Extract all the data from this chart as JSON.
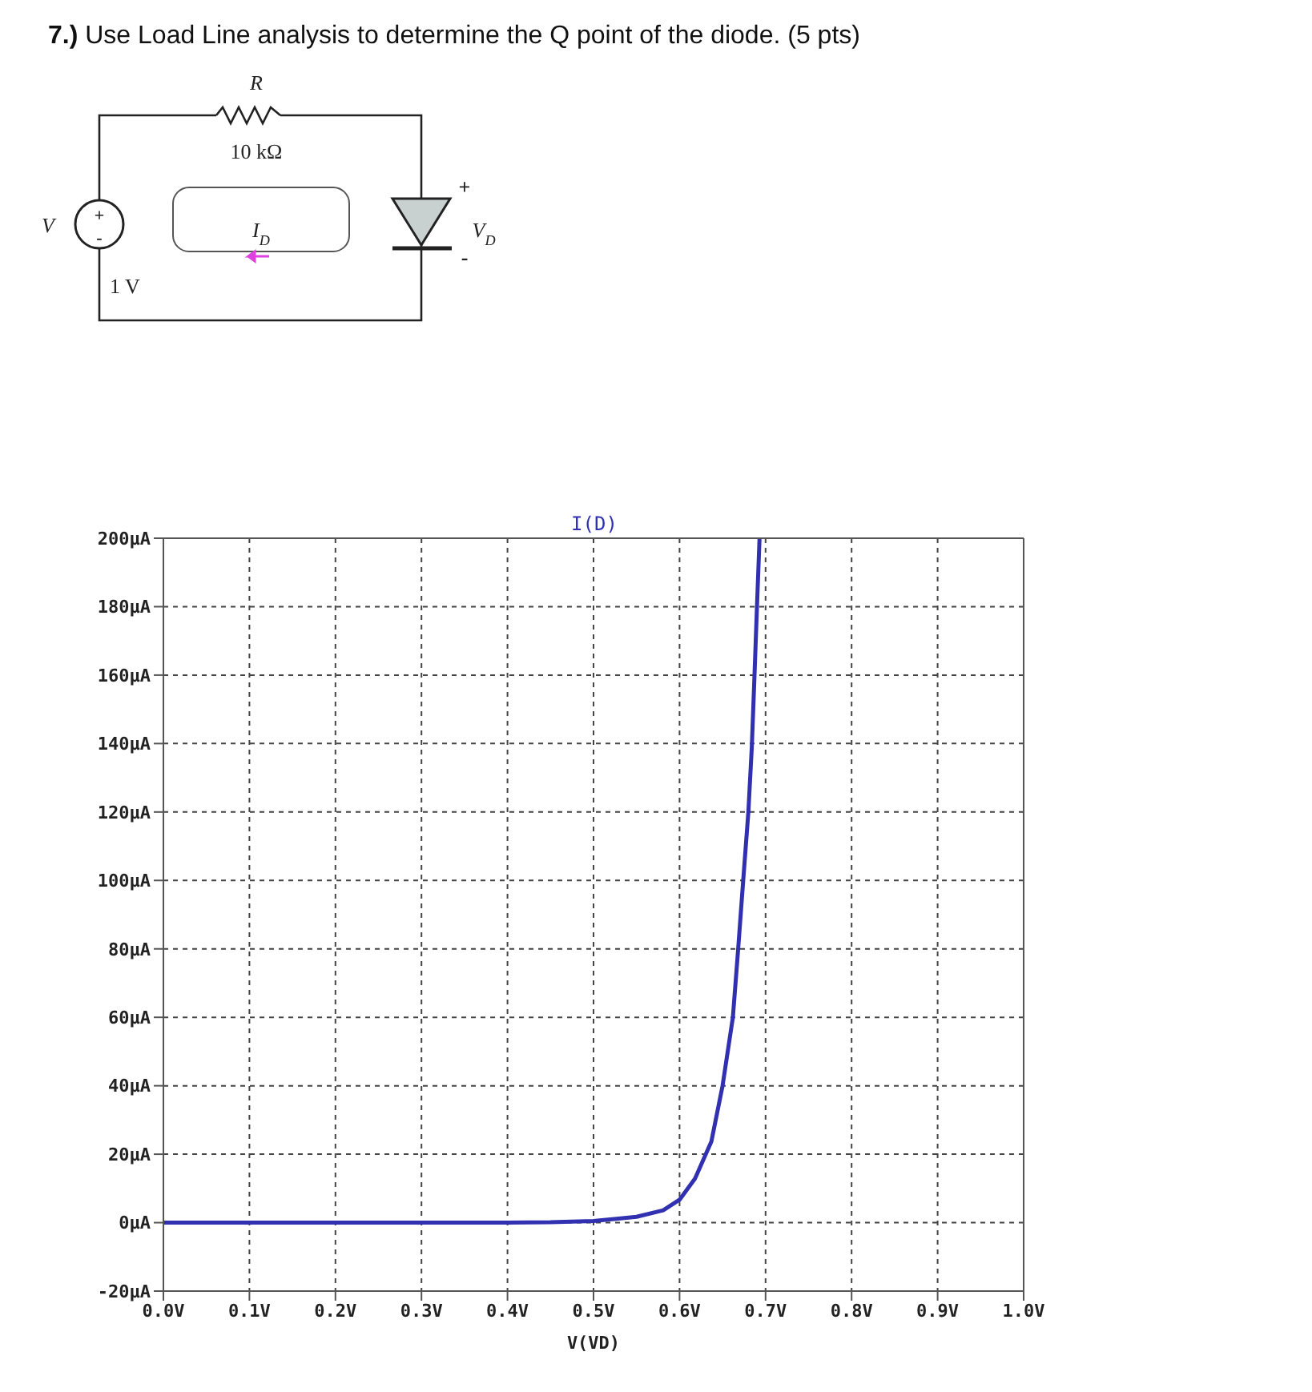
{
  "chart_data": {
    "type": "line",
    "title": "7.) Use Load Line analysis to determine the Q point of the diode. (5 pts)",
    "subtitle": "I(D)",
    "xlabel": "V(VD)",
    "annotations": [
      "R",
      "10 kΩ",
      "V",
      "1 V",
      "+",
      "-",
      "I$_{D}$",
      "+",
      "V$_{D}$",
      "-"
    ],
    "series": [
      {
        "color": "#3030b0",
        "x": [
          0,
          0.1,
          0.2,
          0.3,
          0.4,
          0.45,
          0.5,
          0.55,
          0.581,
          0.6,
          0.618,
          0.637,
          0.65,
          0.662,
          0.668,
          0.674,
          0.68,
          0.684,
          0.687,
          0.69,
          0.693
        ],
        "values": [
          0,
          0,
          0,
          0,
          0,
          0.1,
          0.5,
          1.7,
          3.6,
          6.7,
          12.9,
          23.7,
          40,
          60,
          79.5,
          100,
          120,
          139,
          159,
          180,
          200
        ]
      }
    ],
    "xlim": [
      0,
      1
    ],
    "xticks": [
      {
        "value": 0,
        "label": "0.0V"
      },
      {
        "value": 0.1,
        "label": "0.1V"
      },
      {
        "value": 0.2,
        "label": "0.2V"
      },
      {
        "value": 0.3,
        "label": "0.3V"
      },
      {
        "value": 0.4,
        "label": "0.4V"
      },
      {
        "value": 0.5,
        "label": "0.5V"
      },
      {
        "value": 0.6,
        "label": "0.6V"
      },
      {
        "value": 0.7,
        "label": "0.7V"
      },
      {
        "value": 0.8,
        "label": "0.8V"
      },
      {
        "value": 0.9,
        "label": "0.9V"
      },
      {
        "value": 1,
        "label": "1.0V"
      }
    ],
    "ylim": [
      -20,
      200
    ],
    "yticks": [
      {
        "value": -20,
        "label": "-20µA"
      },
      {
        "value": 0,
        "label": "0µA"
      },
      {
        "value": 20,
        "label": "20µA"
      },
      {
        "value": 40,
        "label": "40µA"
      },
      {
        "value": 60,
        "label": "60µA"
      },
      {
        "value": 80,
        "label": "80µA"
      },
      {
        "value": 100,
        "label": "100µA"
      },
      {
        "value": 120,
        "label": "120µA"
      },
      {
        "value": 140,
        "label": "140µA"
      },
      {
        "value": 160,
        "label": "160µA"
      },
      {
        "value": 180,
        "label": "180µA"
      },
      {
        "value": 200,
        "label": "200µA"
      }
    ],
    "grid": true,
    "marker": "none",
    "line_style": "solid"
  }
}
